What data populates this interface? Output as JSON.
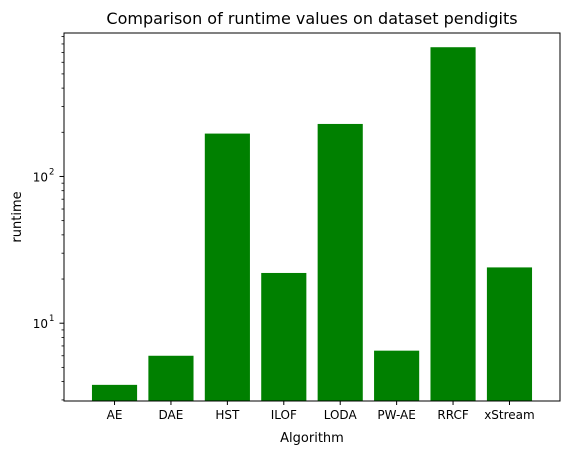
{
  "chart_data": {
    "type": "bar",
    "title": "Comparison of runtime values on dataset pendigits",
    "xlabel": "Algorithm",
    "ylabel": "runtime",
    "yscale": "log",
    "ylim": [
      2.95,
      950
    ],
    "categories": [
      "AE",
      "DAE",
      "HST",
      "ILOF",
      "LODA",
      "PW-AE",
      "RRCF",
      "xStream"
    ],
    "values": [
      3.8,
      6.0,
      196,
      22,
      228,
      6.5,
      760,
      24
    ],
    "major_ticks": [
      10,
      100
    ],
    "major_tick_labels": [
      "10",
      "10"
    ],
    "major_tick_exponents": [
      "1",
      "2"
    ],
    "grid": false,
    "legend": "none",
    "bar_color": "#008000"
  }
}
